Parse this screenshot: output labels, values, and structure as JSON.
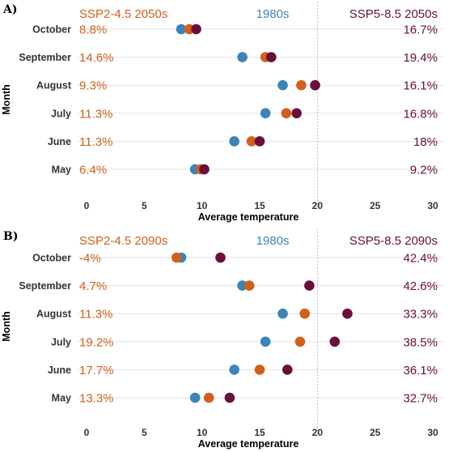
{
  "colors": {
    "baseline": "#3a84bb",
    "ssp245": "#d2601c",
    "ssp585": "#6b0f3a"
  },
  "chart_data": [
    {
      "type": "scatter",
      "panel_label": "A)",
      "xlabel": "Average temperature",
      "ylabel": "Month",
      "xlim": [
        0,
        30
      ],
      "xticks": [
        "0",
        "5",
        "10",
        "15",
        "20",
        "25",
        "30"
      ],
      "reference_x": 20,
      "months": [
        "October",
        "September",
        "August",
        "July",
        "June",
        "May"
      ],
      "series": [
        {
          "name": "1980s",
          "values": [
            8.2,
            13.5,
            17.0,
            15.5,
            12.8,
            9.4
          ]
        },
        {
          "name": "SSP2-4.5 2050s",
          "values": [
            8.9,
            15.5,
            18.6,
            17.3,
            14.3,
            9.9
          ]
        },
        {
          "name": "SSP5-8.5 2050s",
          "values": [
            9.5,
            16.0,
            19.8,
            18.2,
            15.0,
            10.2
          ]
        }
      ],
      "ssp245_change": [
        "8.8%",
        "14.6%",
        "9.3%",
        "11.3%",
        "11.3%",
        "6.4%"
      ],
      "ssp585_change": [
        "16.7%",
        "19.4%",
        "16.1%",
        "16.8%",
        "18%",
        "9.2%"
      ]
    },
    {
      "type": "scatter",
      "panel_label": "B)",
      "xlabel": "Average temperature",
      "ylabel": "Month",
      "xlim": [
        0,
        30
      ],
      "xticks": [
        "0",
        "5",
        "10",
        "15",
        "20",
        "25",
        "30"
      ],
      "reference_x": 20,
      "months": [
        "October",
        "September",
        "August",
        "July",
        "June",
        "May"
      ],
      "series": [
        {
          "name": "1980s",
          "values": [
            8.2,
            13.5,
            17.0,
            15.5,
            12.8,
            9.4
          ]
        },
        {
          "name": "SSP2-4.5 2090s",
          "values": [
            7.8,
            14.1,
            18.9,
            18.5,
            15.0,
            10.6
          ]
        },
        {
          "name": "SSP5-8.5 2090s",
          "values": [
            11.6,
            19.3,
            22.6,
            21.5,
            17.4,
            12.4
          ]
        }
      ],
      "ssp245_change": [
        "-4%",
        "4.7%",
        "11.3%",
        "19.2%",
        "17.7%",
        "13.3%"
      ],
      "ssp585_change": [
        "42.4%",
        "42.6%",
        "33.3%",
        "38.5%",
        "36.1%",
        "32.7%"
      ]
    }
  ]
}
